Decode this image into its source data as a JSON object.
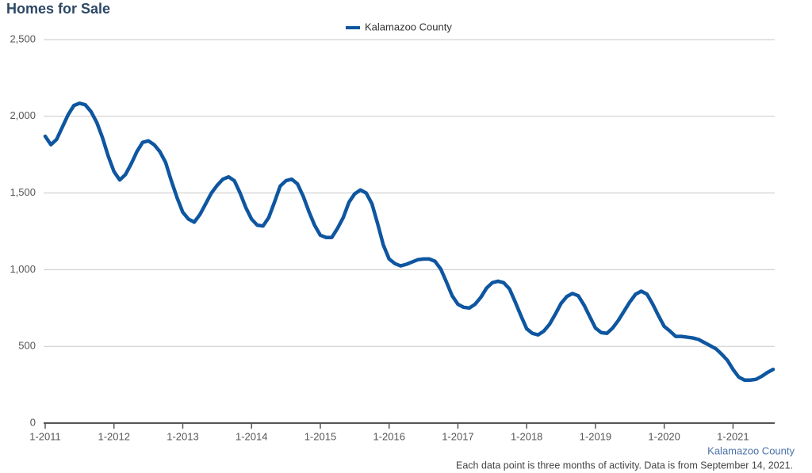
{
  "chart_data": {
    "type": "line",
    "title": "Homes for Sale",
    "annotations": [
      "Kalamazoo County",
      "Each data point is three months of activity. Data is from September 14, 2021."
    ],
    "categories": [
      "1-2011",
      null,
      null,
      null,
      null,
      null,
      null,
      null,
      null,
      null,
      null,
      null,
      "1-2012",
      null,
      null,
      null,
      null,
      null,
      null,
      null,
      null,
      null,
      null,
      null,
      "1-2013",
      null,
      null,
      null,
      null,
      null,
      null,
      null,
      null,
      null,
      null,
      null,
      "1-2014",
      null,
      null,
      null,
      null,
      null,
      null,
      null,
      null,
      null,
      null,
      null,
      "1-2015",
      null,
      null,
      null,
      null,
      null,
      null,
      null,
      null,
      null,
      null,
      null,
      "1-2016",
      null,
      null,
      null,
      null,
      null,
      null,
      null,
      null,
      null,
      null,
      null,
      "1-2017",
      null,
      null,
      null,
      null,
      null,
      null,
      null,
      null,
      null,
      null,
      null,
      "1-2018",
      null,
      null,
      null,
      null,
      null,
      null,
      null,
      null,
      null,
      null,
      null,
      "1-2019",
      null,
      null,
      null,
      null,
      null,
      null,
      null,
      null,
      null,
      null,
      null,
      "1-2020",
      null,
      null,
      null,
      null,
      null,
      null,
      null,
      null,
      null,
      null,
      null,
      "1-2021",
      null,
      null,
      null,
      null,
      null,
      null,
      null
    ],
    "series": [
      {
        "name": "Kalamazoo County",
        "color": "#0e56a0",
        "values": [
          1870,
          1815,
          1850,
          1930,
          2010,
          2070,
          2085,
          2075,
          2030,
          1960,
          1860,
          1740,
          1640,
          1585,
          1620,
          1690,
          1770,
          1830,
          1840,
          1815,
          1770,
          1700,
          1580,
          1470,
          1375,
          1330,
          1310,
          1360,
          1430,
          1500,
          1550,
          1590,
          1605,
          1580,
          1500,
          1405,
          1330,
          1290,
          1285,
          1340,
          1440,
          1545,
          1580,
          1590,
          1560,
          1480,
          1380,
          1290,
          1225,
          1210,
          1210,
          1270,
          1340,
          1440,
          1495,
          1520,
          1500,
          1430,
          1300,
          1160,
          1070,
          1040,
          1025,
          1035,
          1050,
          1065,
          1070,
          1070,
          1055,
          1005,
          920,
          830,
          775,
          755,
          750,
          775,
          820,
          880,
          915,
          925,
          915,
          875,
          790,
          700,
          615,
          585,
          575,
          600,
          645,
          710,
          780,
          825,
          845,
          830,
          770,
          695,
          620,
          590,
          585,
          620,
          670,
          730,
          790,
          840,
          860,
          840,
          775,
          700,
          630,
          600,
          565,
          565,
          560,
          555,
          545,
          525,
          505,
          485,
          450,
          410,
          350,
          300,
          280,
          280,
          285,
          305,
          330,
          350
        ]
      }
    ],
    "ylim": [
      0,
      2500
    ],
    "yticks": [
      0,
      500,
      {
        "value": 1000,
        "label": "1,000"
      },
      {
        "value": 1500,
        "label": "1,500"
      },
      {
        "value": 2000,
        "label": "2,000"
      },
      {
        "value": 2500,
        "label": "2,500"
      }
    ],
    "grid": true
  }
}
